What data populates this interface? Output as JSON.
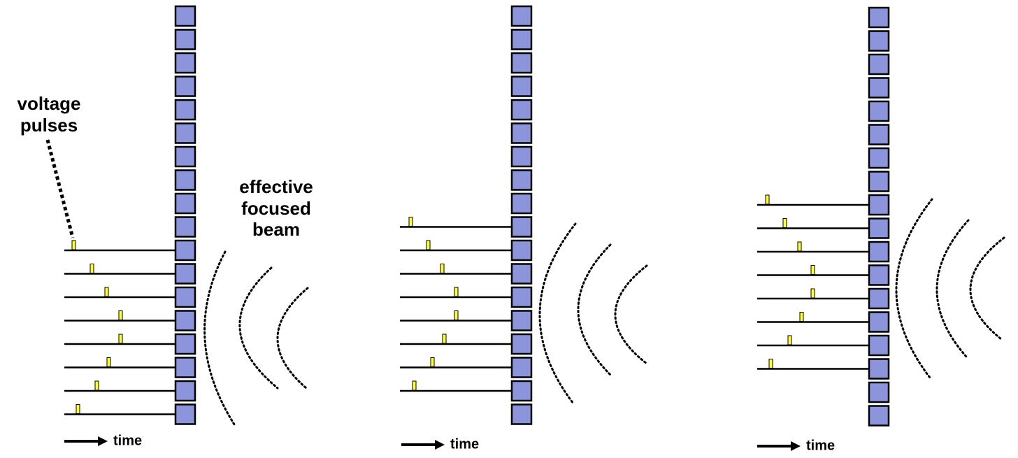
{
  "labels": {
    "voltage_pulses": [
      "voltage",
      "pulses"
    ],
    "effective_focused_beam": [
      "effective",
      "focused",
      "beam"
    ]
  },
  "panels": [
    {
      "time_label": "time"
    },
    {
      "time_label": "time"
    },
    {
      "time_label": "time"
    }
  ]
}
